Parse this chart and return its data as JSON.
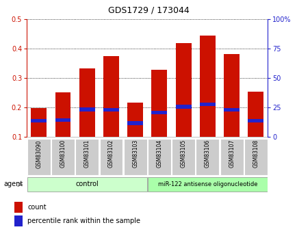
{
  "title": "GDS1729 / 173044",
  "categories": [
    "GSM83090",
    "GSM83100",
    "GSM83101",
    "GSM83102",
    "GSM83103",
    "GSM83104",
    "GSM83105",
    "GSM83106",
    "GSM83107",
    "GSM83108"
  ],
  "count_values": [
    0.197,
    0.25,
    0.333,
    0.373,
    0.217,
    0.328,
    0.418,
    0.443,
    0.38,
    0.253
  ],
  "percentile_values": [
    0.155,
    0.157,
    0.193,
    0.192,
    0.147,
    0.183,
    0.202,
    0.21,
    0.192,
    0.155
  ],
  "bar_bottom": 0.1,
  "ylim": [
    0.1,
    0.5
  ],
  "y2lim": [
    0,
    100
  ],
  "yticks": [
    0.1,
    0.2,
    0.3,
    0.4,
    0.5
  ],
  "y2ticks": [
    0,
    25,
    50,
    75,
    100
  ],
  "count_color": "#cc1100",
  "percentile_color": "#2222cc",
  "bar_width": 0.65,
  "n_control": 5,
  "n_treatment": 5,
  "control_label": "control",
  "treatment_label": "miR-122 antisense oligonucleotide",
  "group_bg_color_control": "#ccffcc",
  "group_bg_color_treatment": "#aaffaa",
  "tick_bg_color": "#cccccc",
  "legend_count": "count",
  "legend_percentile": "percentile rank within the sample",
  "agent_label": "agent",
  "grid_color": "black",
  "title_color": "black",
  "left_axis_color": "#cc1100",
  "right_axis_color": "#2222cc",
  "fig_bg_color": "#ffffff"
}
